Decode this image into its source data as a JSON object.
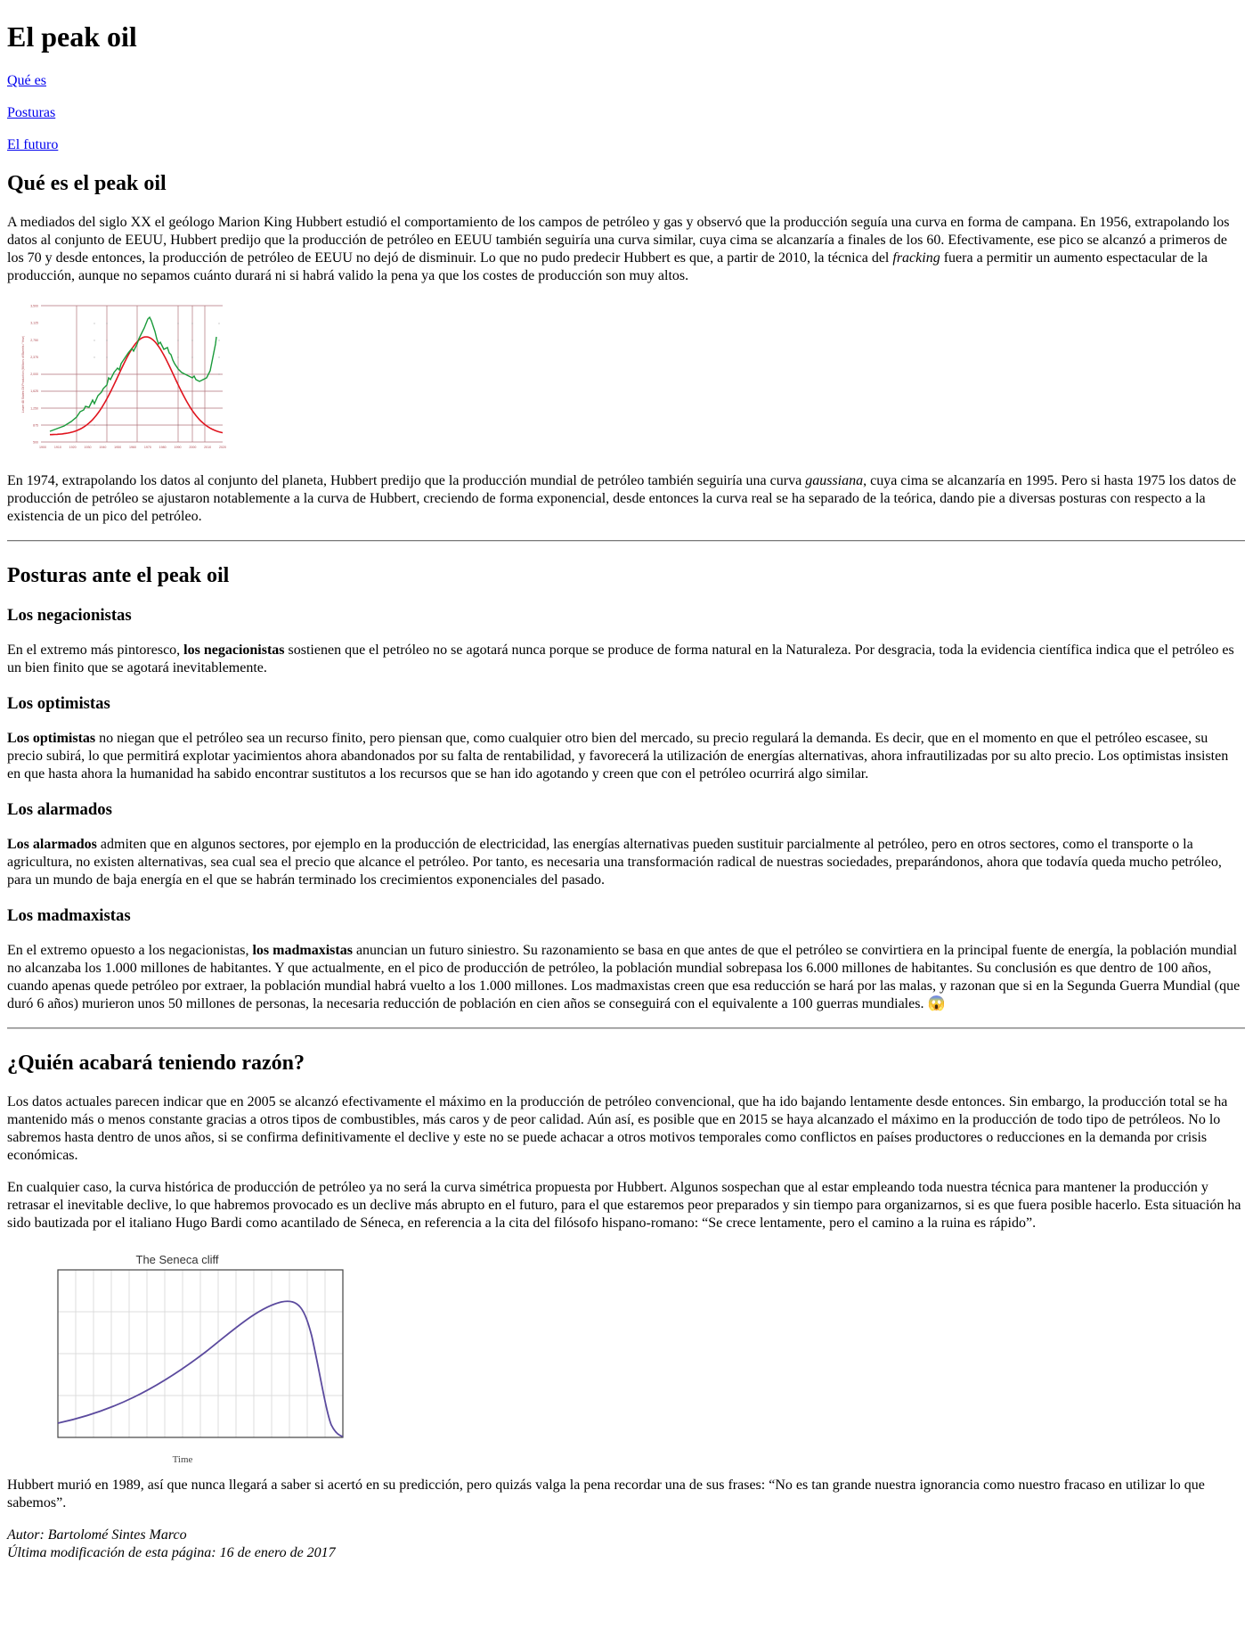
{
  "title": "El peak oil",
  "nav": [
    "Qué es",
    "Posturas",
    "El futuro"
  ],
  "section1": {
    "heading": "Qué es el peak oil",
    "p1_a": "A mediados del siglo XX el geólogo Marion King Hubbert estudió el comportamiento de los campos de petróleo y gas y observó que la producción seguía una curva en forma de campana. En 1956, extrapolando los datos al conjunto de EEUU, Hubbert predijo que la producción de petróleo en EEUU también seguiría una curva similar, cuya cima se alcanzaría a finales de los 60. Efectivamente, ese pico se alcanzó a primeros de los 70 y desde entonces, la producción de petróleo de EEUU no dejó de disminuir. Lo que no pudo predecir Hubbert es que, a partir de 2010, la técnica del ",
    "p1_em": "fracking",
    "p1_b": " fuera a permitir un aumento espectacular de la producción, aunque no sepamos cuánto durará ni si habrá valido la pena ya que los costes de producción son muy altos.",
    "p2_a": "En 1974, extrapolando los datos al conjunto del planeta, Hubbert predijo que la producción mundial de petróleo también seguiría una curva ",
    "p2_em": "gaussiana",
    "p2_b": ", cuya cima se alcanzaría en 1995. Pero si hasta 1975 los datos de producción de petróleo se ajustaron notablemente a la curva de Hubbert, creciendo de forma exponencial, desde entonces la curva real se ha separado de la teórica, dando pie a diversas posturas con respecto a la existencia de un pico del petróleo."
  },
  "hubbert_chart": {
    "ylabel": "Lower 48 States Oil Production (Millions of Barrels / Year)",
    "yticks": [
      "3,500",
      "3,125",
      "2,750",
      "2,375",
      "2,000",
      "1,625",
      "1,250",
      "875",
      "500"
    ],
    "xticks": [
      "1900",
      "1910",
      "1920",
      "1930",
      "1940",
      "1950",
      "1960",
      "1970",
      "1980",
      "1990",
      "2000",
      "2010",
      "2020"
    ],
    "colors": {
      "actual": "#1a9a3a",
      "hubbert": "#e0141e",
      "grid": "#b0737a"
    }
  },
  "section2": {
    "heading": "Posturas ante el peak oil",
    "sub1": "Los negacionistas",
    "p1_a": "En el extremo más pintoresco, ",
    "p1_b": "los negacionistas",
    "p1_c": " sostienen que el petróleo no se agotará nunca porque se produce de forma natural en la Naturaleza. Por desgracia, toda la evidencia científica indica que el petróleo es un bien finito que se agotará inevitablemente.",
    "sub2": "Los optimistas",
    "p2_b": "Los optimistas",
    "p2_c": " no niegan que el petróleo sea un recurso finito, pero piensan que, como cualquier otro bien del mercado, su precio regulará la demanda. Es decir, que en el momento en que el petróleo escasee, su precio subirá, lo que permitirá explotar yacimientos ahora abandonados por su falta de rentabilidad, y favorecerá la utilización de energías alternativas, ahora infrautilizadas por su alto precio. Los optimistas insisten en que hasta ahora la humanidad ha sabido encontrar sustitutos a los recursos que se han ido agotando y creen que con el petróleo ocurrirá algo similar.",
    "sub3": "Los alarmados",
    "p3_b": "Los alarmados",
    "p3_c": " admiten que en algunos sectores, por ejemplo en la producción de electricidad, las energías alternativas pueden sustituir parcialmente al petróleo, pero en otros sectores, como el transporte o la agricultura, no existen alternativas, sea cual sea el precio que alcance el petróleo. Por tanto, es necesaria una transformación radical de nuestras sociedades, preparándonos, ahora que todavía queda mucho petróleo, para un mundo de baja energía en el que se habrán terminado los crecimientos exponenciales del pasado.",
    "sub4": "Los madmaxistas",
    "p4_a": "En el extremo opuesto a los negacionistas, ",
    "p4_b": "los madmaxistas",
    "p4_c": " anuncian un futuro siniestro. Su razonamiento se basa en que antes de que el petróleo se convirtiera en la principal fuente de energía, la población mundial no alcanzaba los 1.000 millones de habitantes. Y que actualmente, en el pico de producción de petróleo, la población mundial sobrepasa los 6.000 millones de habitantes. Su conclusión es que dentro de 100 años, cuando apenas quede petróleo por extraer, la población mundial habrá vuelto a los 1.000 millones. Los madmaxistas creen que esa reducción se hará por las malas, y razonan que si en la Segunda Guerra Mundial (que duró 6 años) murieron unos 50 millones de personas, la necesaria reducción de población en cien años se conseguirá con el equivalente a 100 guerras mundiales. ",
    "emoji": "😱"
  },
  "section3": {
    "heading": "¿Quién acabará teniendo razón?",
    "p1": "Los datos actuales parecen indicar que en 2005 se alcanzó efectivamente el máximo en la producción de petróleo convencional, que ha ido bajando lentamente desde entonces. Sin embargo, la producción total se ha mantenido más o menos constante gracias a otros tipos de combustibles, más caros y de peor calidad. Aún así, es posible que en 2015 se haya alcanzado el máximo en la producción de todo tipo de petróleos. No lo sabremos hasta dentro de unos años, si se confirma definitivamente el declive y este no se puede achacar a otros motivos temporales como conflictos en países productores o reducciones en la demanda por crisis económicas.",
    "p2": "En cualquier caso, la curva histórica de producción de petróleo ya no será la curva simétrica propuesta por Hubbert. Algunos sospechan que al estar empleando toda nuestra técnica para mantener la producción y retrasar el inevitable declive, lo que habremos provocado es un declive más abrupto en el futuro, para el que estaremos peor preparados y sin tiempo para organizarnos, si es que fuera posible hacerlo. Esta situación ha sido bautizada por el italiano Hugo Bardi como acantilado de Séneca, en referencia a la cita del filósofo hispano-romano: “Se crece lentamente, pero el camino a la ruina es rápido”.",
    "p3": "Hubbert murió en 1989, así que nunca llegará a saber si acertó en su predicción, pero quizás valga la pena recordar una de sus frases: “No es tan grande nuestra ignorancia como nuestro fracaso en utilizar lo que sabemos”."
  },
  "seneca_chart": {
    "title": "The Seneca cliff",
    "xlabel": "Time",
    "color": "#5b4a9e"
  },
  "footer": {
    "author": "Autor: Bartolomé Sintes Marco",
    "modified": "Última modificación de esta página: 16 de enero de 2017"
  }
}
